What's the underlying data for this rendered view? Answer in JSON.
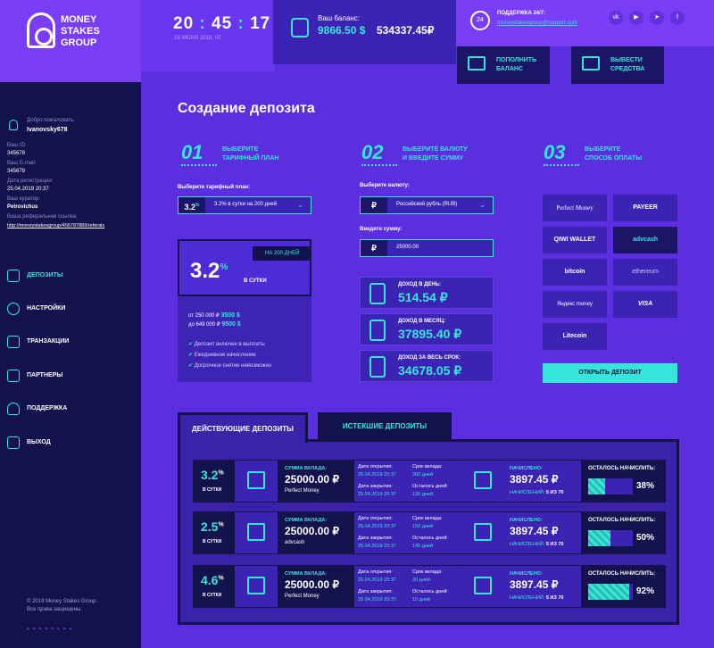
{
  "brand": {
    "name": "MONEY STAKES GROUP"
  },
  "clock": {
    "h": "20",
    "m": "45",
    "s": "17",
    "date": "19 ИЮНЯ 2019, ЧТ"
  },
  "balance": {
    "label": "Ваш баланс:",
    "usd": "9866.50 $",
    "rub": "534337.45₽"
  },
  "support": {
    "label": "ПОДДЕРЖКА 24/7:",
    "email": "moneystakesgroup@support.com",
    "icon": "24"
  },
  "social": [
    "vk",
    "yt",
    "tg",
    "fb"
  ],
  "header_buttons": {
    "topup": "ПОПОЛНИТЬ БАЛАНС",
    "withdraw": "ВЫВЕСТИ СРЕДСТВА"
  },
  "user": {
    "welcome": "Добро пожаловать,",
    "login": "Ivanovsky678",
    "id_label": "Ваш ID:",
    "id": "345678",
    "email_label": "Ваш E-mail:",
    "email": "345678",
    "reg_label": "Дата регистрации:",
    "reg": "25.04.2019 20:37",
    "curator_label": "Ваш куратор:",
    "curator": "Petrovichus",
    "ref_label": "Ваша реферальная ссылка:",
    "ref": "http://moneystakesgroup/456787889/referals"
  },
  "nav": [
    "ДЕПОЗИТЫ",
    "НАСТРОЙКИ",
    "ТРАНЗАКЦИИ",
    "ПАРТНЕРЫ",
    "ПОДДЕРЖКА",
    "ВЫХОД"
  ],
  "footer": {
    "copy": "© 2019 Money Stakes Group.",
    "rights": "Все права защищены."
  },
  "page": {
    "title": "Создание депозита"
  },
  "steps": [
    {
      "n": "01",
      "t1": "ВЫБЕРИТЕ",
      "t2": "ТАРИФНЫЙ ПЛАН"
    },
    {
      "n": "02",
      "t1": "ВЫБЕРИТЕ ВАЛЮТУ",
      "t2": "И ВВЕДИТЕ СУММУ"
    },
    {
      "n": "03",
      "t1": "ВЫБЕРИТЕ",
      "t2": "СПОСОБ ОПЛАТЫ"
    }
  ],
  "plan": {
    "label": "Выберите тарифный план:",
    "pct": "3.2",
    "sup": "%",
    "value": "3.2% в сутки на 200 дней"
  },
  "tariff": {
    "pct": "3.2",
    "sup": "%",
    "per": "В СУТКИ",
    "days": "НА 200 ДНЕЙ",
    "r1": "от 250 000 ₽",
    "r1v": "3500 $",
    "r2": "до 649 000 ₽",
    "r2v": "9500 $",
    "f1": "Депозит включен в выплаты",
    "f2": "Ежедневное начисление",
    "f3": "Досрочное снятие невозможно"
  },
  "currency": {
    "label": "Выберите валюту:",
    "sym": "₽",
    "value": "Российский рубль (RUB)"
  },
  "amount": {
    "label": "Введите сумму:",
    "sym": "₽",
    "value": "25000.00"
  },
  "income": [
    {
      "l": "ДОХОД В ДЕНЬ:",
      "v": "514.54 ₽"
    },
    {
      "l": "ДОХОД В МЕСЯЦ:",
      "v": "37895.40 ₽"
    },
    {
      "l": "ДОХОД ЗА ВЕСЬ СРОК:",
      "v": "34678.05 ₽"
    }
  ],
  "payments": [
    "Perfect Money",
    "PAYEER",
    "QIWI WALLET",
    "advcash",
    "bitcoin",
    "ethereum",
    "Яндекс money",
    "VISA",
    "Litecoin"
  ],
  "open_btn": "ОТКРЫТЬ ДЕПОЗИТ",
  "tabs": {
    "active": "ДЕЙСТВУЮЩИЕ ДЕПОЗИТЫ",
    "expired": "ИСТЕКШИЕ ДЕПОЗИТЫ"
  },
  "dep_labels": {
    "per": "В СУТКИ",
    "sum": "СУММА ВКЛАДА:",
    "open": "Дата открытия:",
    "close": "Дата закрытия:",
    "term": "Срок вклада:",
    "left": "Осталось дней:",
    "acc": "НАЧИСЛЕНО:",
    "acc_n": "НАЧИСЛЕНИЙ:",
    "remain": "ОСТАЛОСЬ НАЧИСЛИТЬ:"
  },
  "deposits": [
    {
      "pct": "3.2",
      "sup": "%",
      "sum": "25000.00 ₽",
      "pm": "Perfect Money",
      "open": "25.04.2019 20:37",
      "close": "25.04.2019 20:37",
      "term": "200 дней",
      "left": "135 дней",
      "acc": "3897.45 ₽",
      "n": "5 ИЗ 70",
      "rem": "38%",
      "fill": 0.38
    },
    {
      "pct": "2.5",
      "sup": "%",
      "sum": "25000.00 ₽",
      "pm": "advcash",
      "open": "25.04.2019 20:37",
      "close": "25.04.2019 20:37",
      "term": "150 дней",
      "left": "145 дней",
      "acc": "3897.45 ₽",
      "n": "5 ИЗ 70",
      "rem": "50%",
      "fill": 0.5
    },
    {
      "pct": "4.6",
      "sup": "%",
      "sum": "25000.00 ₽",
      "pm": "Perfect Money",
      "open": "25.04.2019 20:37",
      "close": "25.04.2019 20:37",
      "term": "30 дней",
      "left": "10 дней",
      "acc": "3897.45 ₽",
      "n": "5 ИЗ 70",
      "rem": "92%",
      "fill": 0.92
    }
  ],
  "colors": {
    "accent": "#36e6d8",
    "bg": "#5b2fe0",
    "dark": "#14124d"
  }
}
